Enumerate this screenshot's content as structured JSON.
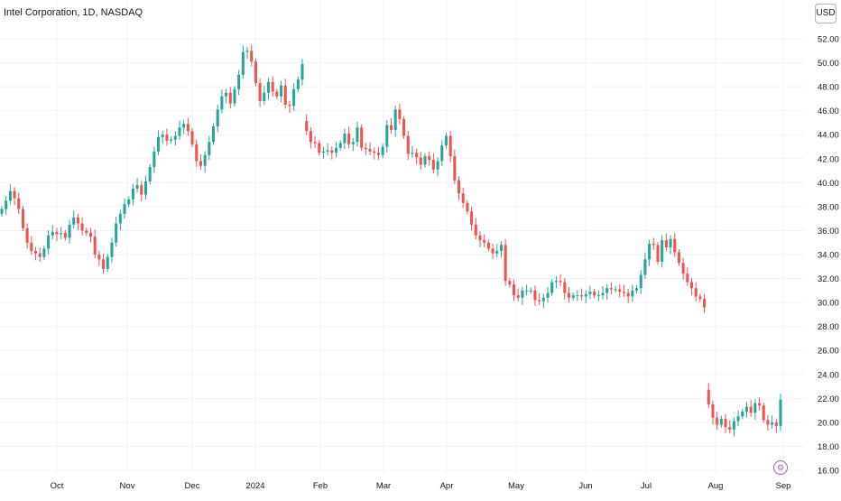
{
  "header": {
    "title": "Intel Corporation, 1D, NASDAQ"
  },
  "currency": "USD",
  "icons": {
    "settings": "gear-icon"
  },
  "colors": {
    "up": "#26a69a",
    "down": "#ef5350",
    "grid": "#f0f3fa",
    "axis_text": "#131722",
    "marker": "#9c5bcf"
  },
  "chart_data": {
    "type": "candlestick",
    "title": "Intel Corporation, 1D, NASDAQ",
    "ylim": [
      16,
      53
    ],
    "y_ticks": [
      "16.00",
      "18.00",
      "20.00",
      "22.00",
      "24.00",
      "26.00",
      "28.00",
      "30.00",
      "32.00",
      "34.00",
      "36.00",
      "38.00",
      "40.00",
      "42.00",
      "44.00",
      "46.00",
      "48.00",
      "50.00",
      "52.00"
    ],
    "x_ticks": [
      "Oct",
      "Nov",
      "Dec",
      "2024",
      "Feb",
      "Mar",
      "Apr",
      "May",
      "Jun",
      "Jul",
      "Aug",
      "Sep"
    ],
    "grid": true,
    "close": [
      37.8,
      38.5,
      39.3,
      38.7,
      37.8,
      36.2,
      35.0,
      34.3,
      34.1,
      33.8,
      34.5,
      35.6,
      35.9,
      35.7,
      35.8,
      35.4,
      36.5,
      37.1,
      36.6,
      36.0,
      35.8,
      35.5,
      34.0,
      33.6,
      32.8,
      33.8,
      35.0,
      36.6,
      37.4,
      38.2,
      38.6,
      39.5,
      39.8,
      39.0,
      40.1,
      41.3,
      42.6,
      43.8,
      44.0,
      43.5,
      43.6,
      43.9,
      44.6,
      44.9,
      44.3,
      43.2,
      41.8,
      41.4,
      42.3,
      43.4,
      44.7,
      46.1,
      47.2,
      47.5,
      46.6,
      47.8,
      49.0,
      50.9,
      51.0,
      50.1,
      48.3,
      46.8,
      47.5,
      48.4,
      47.6,
      47.2,
      48.1,
      46.5,
      46.4,
      47.8,
      48.6,
      49.9,
      44.3,
      43.4,
      43.3,
      42.5,
      42.6,
      42.7,
      42.5,
      42.9,
      43.3,
      44.1,
      43.2,
      43.4,
      44.6,
      42.9,
      42.8,
      42.6,
      42.5,
      42.3,
      43.0,
      44.8,
      44.4,
      46.1,
      45.3,
      43.9,
      42.4,
      42.5,
      42.1,
      41.5,
      42.2,
      41.9,
      41.1,
      41.8,
      43.1,
      43.9,
      42.2,
      40.2,
      39.1,
      38.3,
      37.6,
      36.5,
      35.6,
      35.2,
      35.0,
      34.5,
      34.1,
      34.3,
      34.8,
      31.8,
      31.5,
      30.6,
      30.4,
      31.0,
      31.0,
      31.0,
      30.2,
      30.1,
      30.4,
      30.8,
      31.7,
      31.8,
      31.7,
      30.8,
      30.4,
      30.6,
      30.6,
      30.5,
      30.7,
      30.9,
      30.6,
      30.6,
      30.8,
      31.2,
      31.1,
      31.1,
      30.9,
      30.8,
      30.5,
      31.0,
      31.2,
      32.3,
      33.6,
      34.9,
      34.8,
      33.4,
      35.2,
      34.6,
      35.3,
      34.2,
      33.3,
      32.4,
      31.7,
      31.2,
      30.5,
      30.3,
      29.6,
      21.5,
      20.4,
      19.8,
      20.3,
      19.6,
      19.4,
      20.1,
      20.5,
      20.9,
      21.3,
      20.8,
      21.6,
      21.4,
      20.2,
      19.8,
      20.0,
      19.7,
      21.9
    ]
  }
}
